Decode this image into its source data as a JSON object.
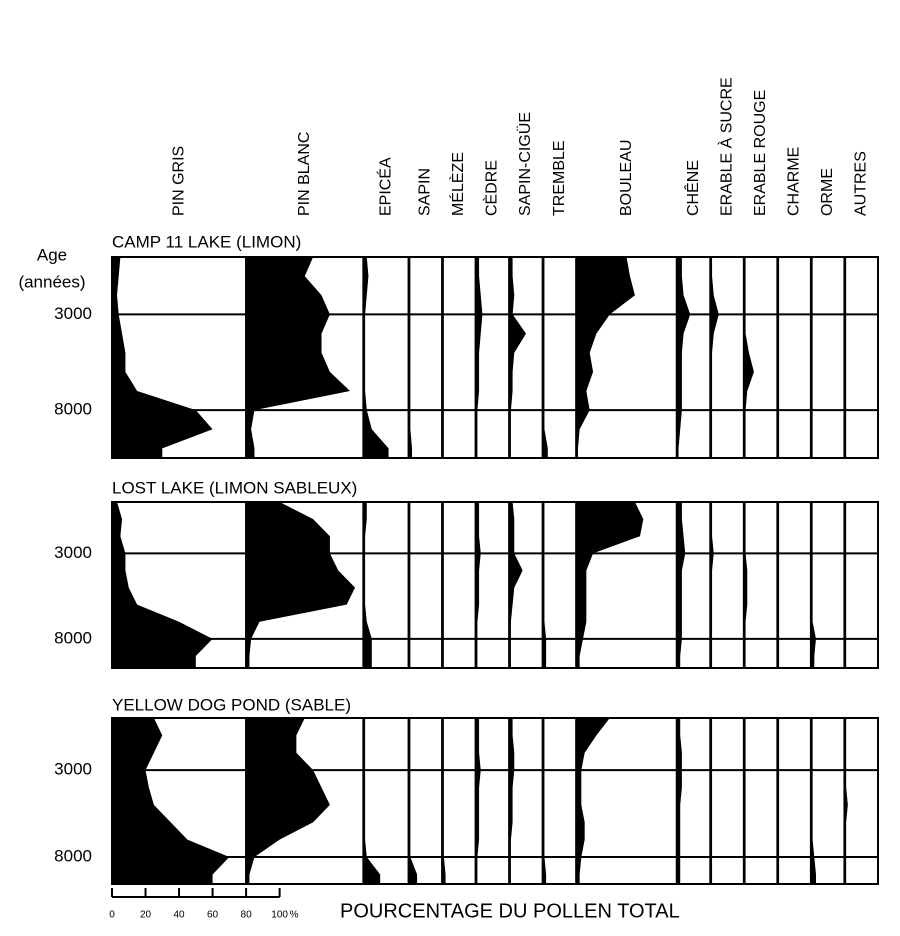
{
  "chart_data": {
    "type": "area",
    "y_label": [
      "Age",
      "(années)"
    ],
    "x_label": "POURCENTAGE DU POLLEN TOTAL",
    "xticks": [
      0,
      20,
      40,
      60,
      80,
      100
    ],
    "x_unit": "%",
    "color": "#000000",
    "sites": [
      {
        "title": "CAMP 11 LAKE (LIMON)",
        "ylim": [
          0,
          10500
        ],
        "yticks": [
          3000,
          8000
        ],
        "ages": [
          0,
          1000,
          2000,
          3000,
          4000,
          5000,
          6000,
          7000,
          8000,
          9000,
          10000
        ]
      },
      {
        "title": "LOST LAKE (LIMON SABLEUX)",
        "ylim": [
          0,
          9700
        ],
        "yticks": [
          3000,
          8000
        ],
        "ages": [
          0,
          1000,
          2000,
          3000,
          4000,
          5000,
          6000,
          7000,
          8000,
          9000
        ]
      },
      {
        "title": "YELLOW DOG POND (SABLE)",
        "ylim": [
          0,
          9550
        ],
        "yticks": [
          3000,
          8000
        ],
        "ages": [
          0,
          1000,
          2000,
          3000,
          4000,
          5000,
          6000,
          7000,
          8000,
          9000
        ]
      }
    ],
    "series": [
      {
        "name": "PIN GRIS",
        "xlim": [
          0,
          80
        ],
        "values": [
          [
            5,
            4,
            3,
            4,
            6,
            8,
            8,
            15,
            50,
            60,
            30
          ],
          [
            3,
            6,
            5,
            8,
            8,
            10,
            15,
            40,
            60,
            50
          ],
          [
            25,
            30,
            25,
            20,
            22,
            25,
            35,
            45,
            70,
            60
          ]
        ]
      },
      {
        "name": "PIN BLANC",
        "xlim": [
          0,
          70
        ],
        "values": [
          [
            40,
            35,
            45,
            50,
            45,
            45,
            50,
            62,
            5,
            3,
            5
          ],
          [
            20,
            40,
            50,
            50,
            55,
            65,
            60,
            8,
            3,
            2
          ],
          [
            35,
            30,
            30,
            40,
            45,
            50,
            40,
            20,
            5,
            2
          ]
        ]
      },
      {
        "name": "EPICÉA",
        "xlim": [
          0,
          27
        ],
        "values": [
          [
            2,
            3,
            2,
            1,
            1,
            1,
            1,
            1,
            2,
            5,
            15
          ],
          [
            2,
            2,
            1,
            1,
            1,
            1,
            1,
            2,
            5,
            5
          ],
          [
            1,
            1,
            1,
            1,
            1,
            1,
            1,
            1,
            2,
            10
          ]
        ]
      },
      {
        "name": "SAPIN",
        "xlim": [
          0,
          20
        ],
        "values": [
          [
            1,
            1,
            1,
            1,
            1,
            1,
            1,
            1,
            1,
            1,
            2
          ],
          [
            1,
            1,
            1,
            1,
            1,
            1,
            1,
            1,
            1,
            1
          ],
          [
            1,
            1,
            1,
            1,
            1,
            1,
            1,
            1,
            1,
            5
          ]
        ]
      },
      {
        "name": "MÉLÈZE",
        "xlim": [
          0,
          20
        ],
        "values": [
          [
            1,
            1,
            1,
            1,
            1,
            1,
            1,
            1,
            1,
            1,
            1
          ],
          [
            1,
            1,
            1,
            1,
            1,
            1,
            1,
            1,
            1,
            1
          ],
          [
            1,
            1,
            1,
            1,
            1,
            1,
            1,
            1,
            1,
            2
          ]
        ]
      },
      {
        "name": "CÈDRE",
        "xlim": [
          0,
          20
        ],
        "values": [
          [
            2,
            2,
            3,
            4,
            3,
            2,
            2,
            2,
            1,
            1,
            1
          ],
          [
            2,
            2,
            2,
            3,
            2,
            2,
            2,
            1,
            1,
            1
          ],
          [
            2,
            2,
            2,
            3,
            2,
            2,
            2,
            2,
            1,
            1
          ]
        ]
      },
      {
        "name": "SAPIN-CIGÜE",
        "xlim": [
          0,
          20
        ],
        "values": [
          [
            2,
            2,
            3,
            2,
            10,
            3,
            2,
            2,
            1,
            1,
            1
          ],
          [
            2,
            3,
            3,
            3,
            8,
            3,
            2,
            1,
            1,
            1
          ],
          [
            2,
            2,
            3,
            3,
            2,
            2,
            2,
            1,
            1,
            1
          ]
        ]
      },
      {
        "name": "TREMBLE",
        "xlim": [
          0,
          20
        ],
        "values": [
          [
            1,
            1,
            1,
            1,
            1,
            1,
            1,
            1,
            1,
            1,
            3
          ],
          [
            1,
            1,
            1,
            1,
            1,
            1,
            1,
            1,
            2,
            2
          ],
          [
            1,
            1,
            1,
            1,
            1,
            1,
            1,
            1,
            1,
            2
          ]
        ]
      },
      {
        "name": "BOULEAU",
        "xlim": [
          0,
          60
        ],
        "values": [
          [
            30,
            32,
            35,
            20,
            12,
            8,
            10,
            6,
            8,
            2,
            1
          ],
          [
            35,
            40,
            38,
            10,
            6,
            6,
            6,
            6,
            4,
            2
          ],
          [
            20,
            12,
            5,
            3,
            3,
            3,
            5,
            5,
            3,
            2
          ]
        ]
      },
      {
        "name": "CHÊNE",
        "xlim": [
          0,
          20
        ],
        "values": [
          [
            3,
            3,
            4,
            8,
            4,
            3,
            3,
            3,
            3,
            2,
            1
          ],
          [
            3,
            3,
            4,
            5,
            3,
            3,
            3,
            3,
            3,
            2
          ],
          [
            2,
            2,
            3,
            3,
            3,
            2,
            2,
            2,
            2,
            2
          ]
        ]
      },
      {
        "name": "ERABLE À SUCRE",
        "xlim": [
          0,
          20
        ],
        "values": [
          [
            1,
            1,
            2,
            5,
            2,
            1,
            1,
            1,
            1,
            1,
            1
          ],
          [
            1,
            1,
            1,
            2,
            1,
            1,
            1,
            1,
            1,
            1
          ],
          [
            1,
            1,
            1,
            1,
            1,
            1,
            1,
            1,
            1,
            1
          ]
        ]
      },
      {
        "name": "ERABLE ROUGE",
        "xlim": [
          0,
          20
        ],
        "values": [
          [
            1,
            1,
            1,
            1,
            1,
            3,
            6,
            2,
            1,
            1,
            1
          ],
          [
            1,
            1,
            1,
            1,
            2,
            2,
            2,
            1,
            1,
            1
          ],
          [
            1,
            1,
            1,
            1,
            1,
            1,
            1,
            1,
            1,
            1
          ]
        ]
      },
      {
        "name": "CHARME",
        "xlim": [
          0,
          20
        ],
        "values": [
          [
            1,
            1,
            1,
            1,
            1,
            1,
            1,
            1,
            1,
            1,
            1
          ],
          [
            1,
            1,
            1,
            1,
            1,
            1,
            1,
            1,
            1,
            1
          ],
          [
            1,
            1,
            1,
            1,
            1,
            1,
            1,
            1,
            1,
            1
          ]
        ]
      },
      {
        "name": "ORME",
        "xlim": [
          0,
          20
        ],
        "values": [
          [
            1,
            1,
            1,
            1,
            1,
            1,
            1,
            1,
            1,
            1,
            1
          ],
          [
            1,
            1,
            1,
            1,
            1,
            1,
            1,
            1,
            3,
            2
          ],
          [
            1,
            1,
            1,
            1,
            1,
            1,
            1,
            1,
            2,
            3
          ]
        ]
      },
      {
        "name": "AUTRES",
        "xlim": [
          0,
          20
        ],
        "values": [
          [
            1,
            1,
            1,
            1,
            1,
            1,
            1,
            1,
            1,
            1,
            1
          ],
          [
            1,
            1,
            1,
            1,
            1,
            1,
            1,
            1,
            1,
            1
          ],
          [
            1,
            1,
            1,
            1,
            1,
            2,
            1,
            1,
            1,
            1
          ]
        ]
      }
    ]
  }
}
